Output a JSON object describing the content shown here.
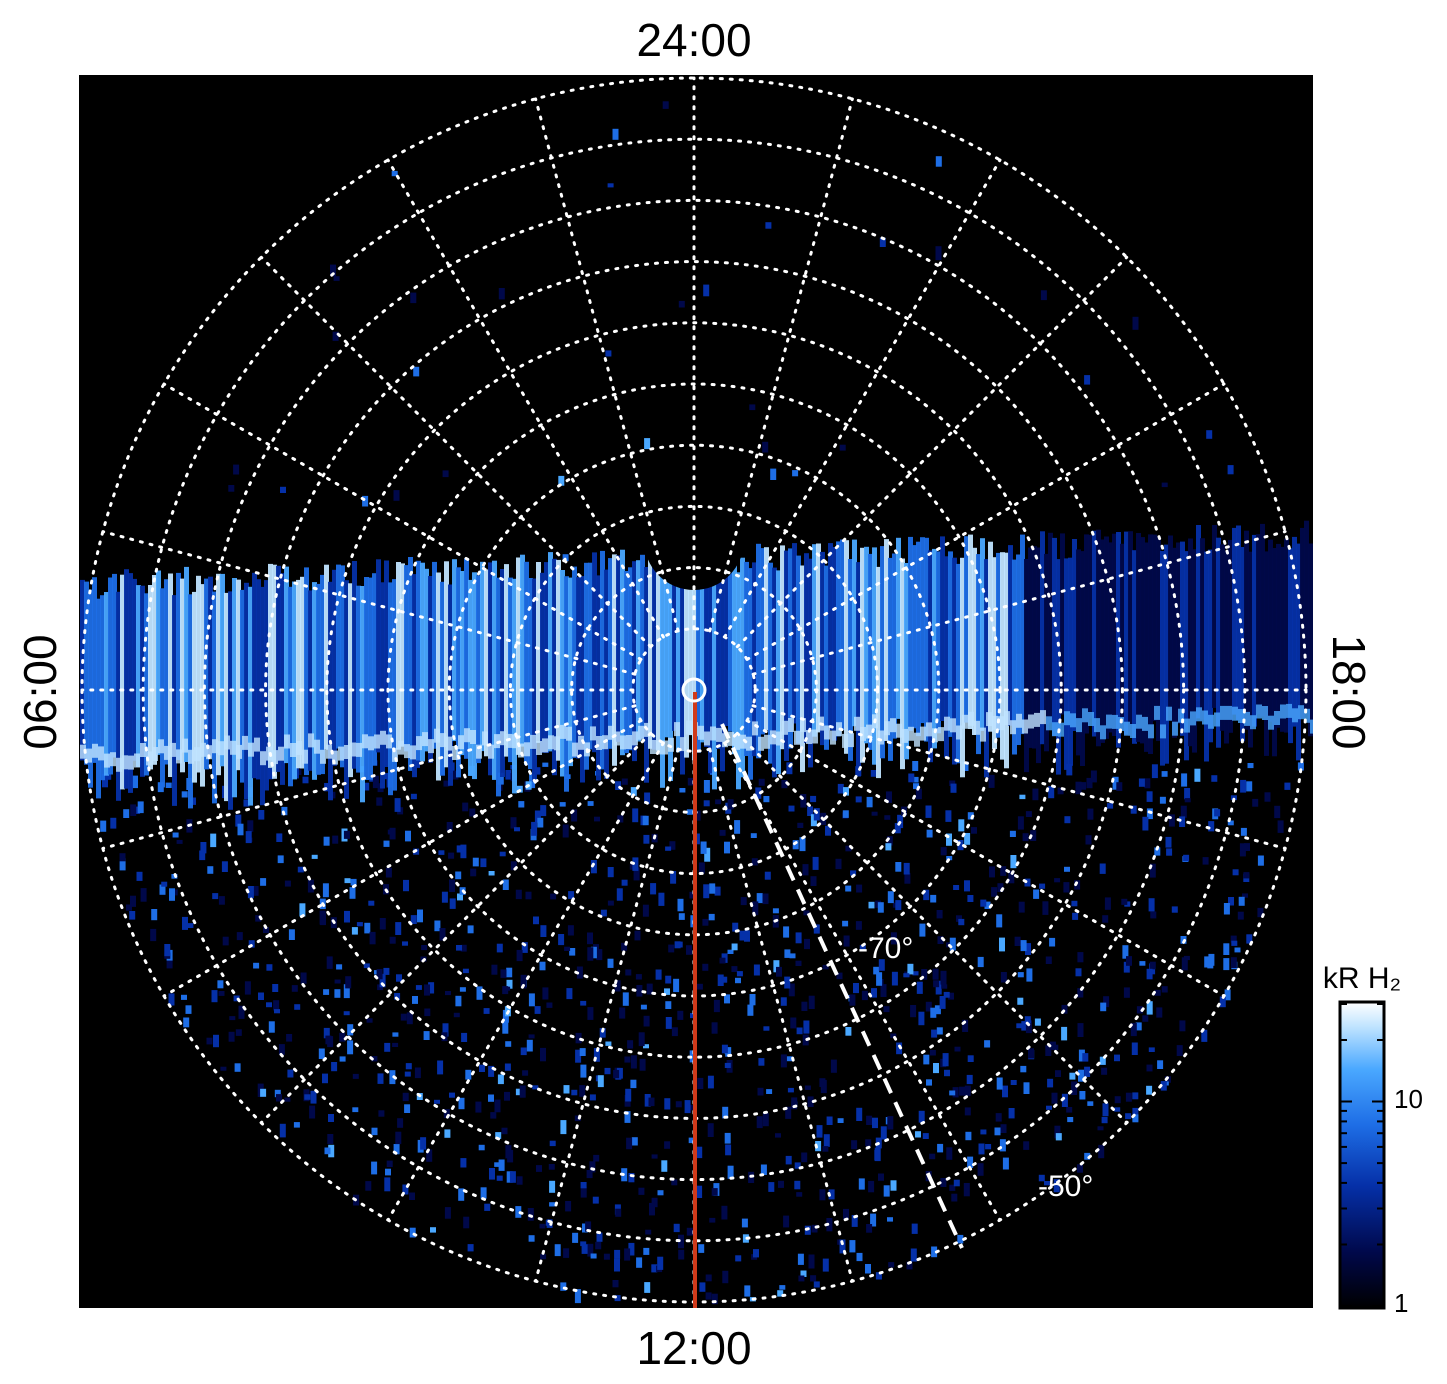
{
  "chart_data": {
    "type": "heatmap",
    "projection": "polar",
    "local_time_labels": {
      "top": "24:00",
      "bottom": "12:00",
      "left": "06:00",
      "right": "18:00"
    },
    "latitude_labels": [
      "-70°",
      "-50°"
    ],
    "latitude_circles": [
      -85,
      -80,
      -75,
      -70,
      -65,
      -60,
      -55,
      -50,
      -45,
      -40
    ],
    "meridian_step_hours": 1,
    "colorbar": {
      "title": "kR H₂",
      "scale": "log",
      "range": [
        1,
        30
      ],
      "tick_labels": [
        "10",
        "1"
      ],
      "tick_values": [
        10,
        1
      ]
    },
    "features": {
      "auroral_band": "bright emission band spanning dawn to dusk across the pole",
      "noon_meridian_line": "red",
      "dashed_line": "white"
    },
    "grid": true
  },
  "colors": {
    "background": "#000000",
    "grid": "#ffffff",
    "noon_line": "#d03a1a",
    "colormap": [
      "#000000",
      "#00084a",
      "#0530a8",
      "#1e6ee6",
      "#4aa8ff",
      "#c0e4ff",
      "#ffffff"
    ]
  }
}
